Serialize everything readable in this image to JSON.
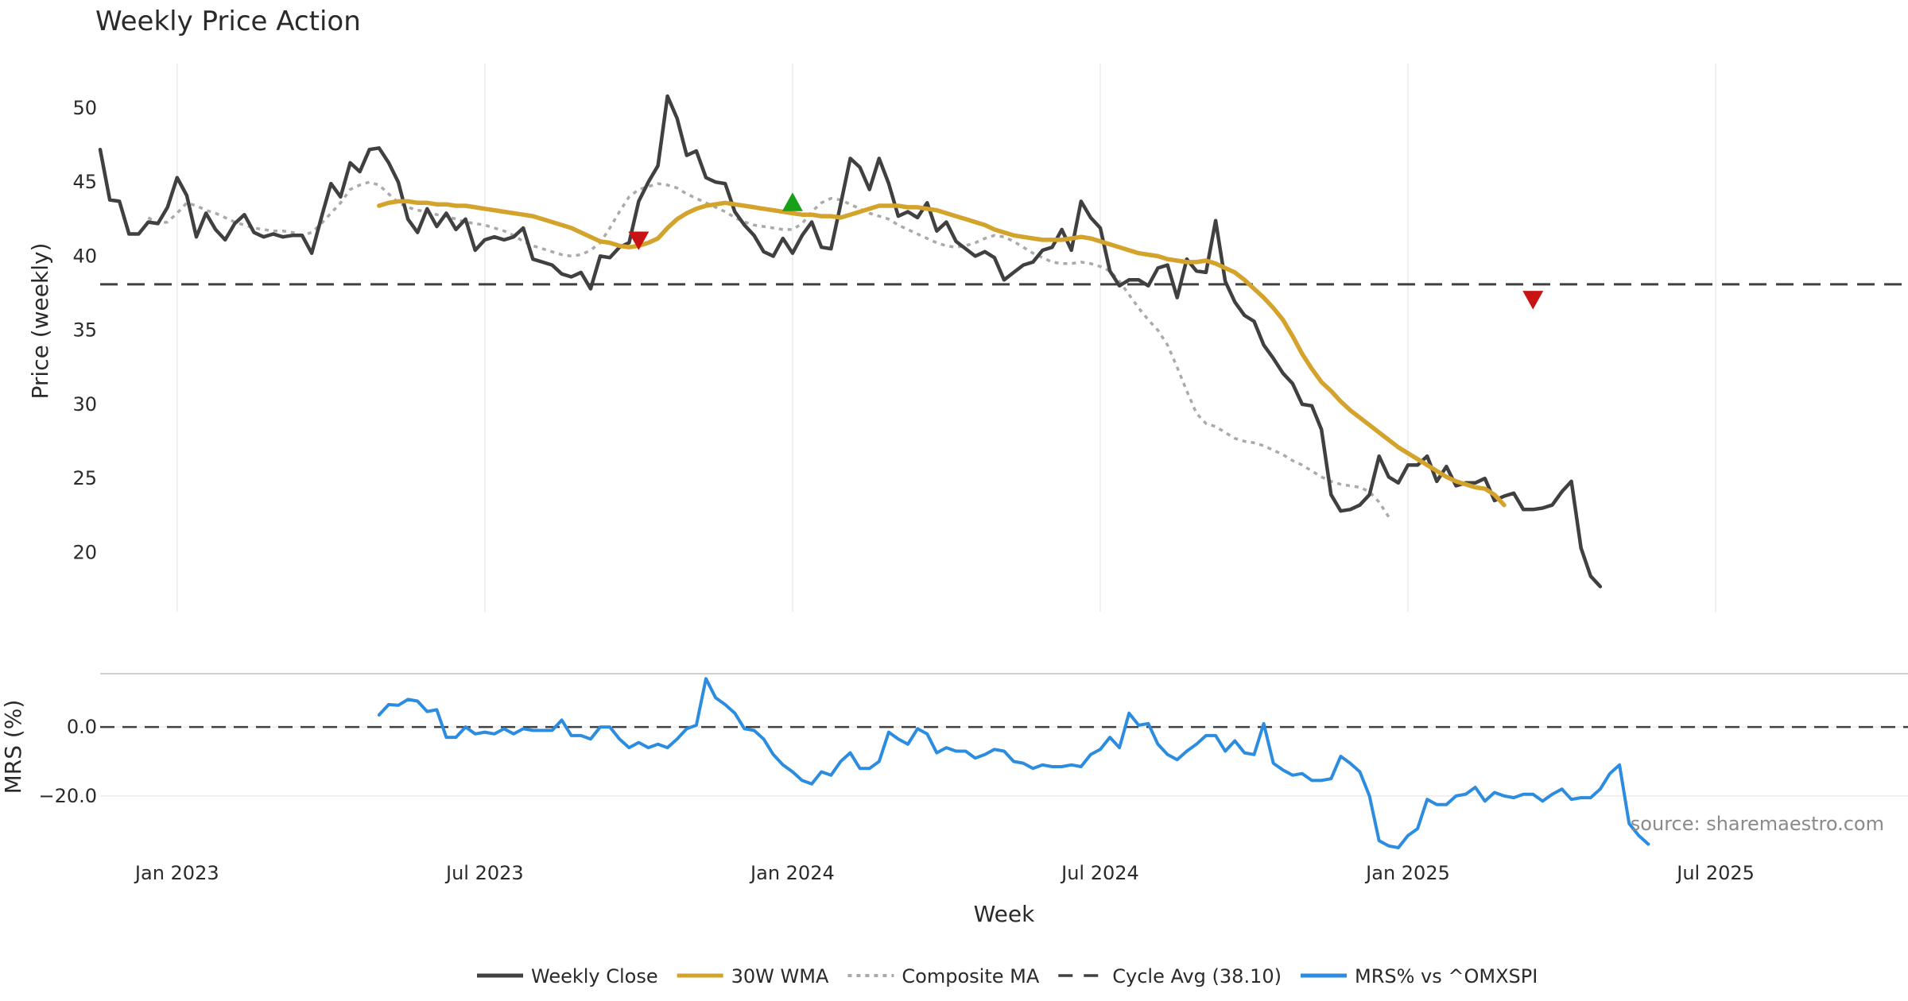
{
  "chart_data": [
    {
      "type": "line",
      "panel": "price",
      "title": "Weekly Price Action",
      "ylabel": "Price (weekly)",
      "xlabel": "Week",
      "xlim": [
        0,
        188
      ],
      "ylim": [
        16,
        53
      ],
      "yticks": [
        20,
        25,
        30,
        35,
        40,
        45,
        50
      ],
      "xticks": [
        {
          "label": "Jan 2023",
          "week": 8
        },
        {
          "label": "Jul 2023",
          "week": 40
        },
        {
          "label": "Jan 2024",
          "week": 72
        },
        {
          "label": "Jul 2024",
          "week": 104
        },
        {
          "label": "Jan 2025",
          "week": 136
        },
        {
          "label": "Jul 2025",
          "week": 168
        }
      ],
      "series": [
        {
          "name": "Weekly Close",
          "color": "#404040",
          "start_week": 0,
          "values": [
            47.2,
            43.8,
            43.7,
            41.5,
            41.5,
            42.3,
            42.2,
            43.3,
            45.3,
            44.1,
            41.3,
            42.9,
            41.8,
            41.1,
            42.2,
            42.8,
            41.6,
            41.3,
            41.5,
            41.3,
            41.4,
            41.4,
            40.2,
            42.6,
            44.9,
            44.0,
            46.3,
            45.7,
            47.2,
            47.3,
            46.3,
            45.0,
            42.5,
            41.6,
            43.2,
            42.0,
            42.9,
            41.8,
            42.5,
            40.4,
            41.1,
            41.3,
            41.1,
            41.3,
            41.9,
            39.8,
            39.6,
            39.4,
            38.8,
            38.6,
            38.9,
            37.8,
            40.0,
            39.9,
            40.6,
            40.9,
            43.7,
            45.0,
            46.1,
            50.8,
            49.3,
            46.8,
            47.1,
            45.3,
            45.0,
            44.9,
            43.0,
            42.1,
            41.4,
            40.3,
            40.0,
            41.2,
            40.2,
            41.4,
            42.3,
            40.6,
            40.5,
            43.5,
            46.6,
            46.0,
            44.5,
            46.6,
            44.9,
            42.7,
            43.0,
            42.6,
            43.6,
            41.7,
            42.3,
            41.0,
            40.5,
            40.0,
            40.3,
            39.9,
            38.4,
            38.9,
            39.4,
            39.6,
            40.4,
            40.6,
            41.8,
            40.4,
            43.7,
            42.6,
            41.9,
            39.0,
            38.0,
            38.4,
            38.4,
            38.0,
            39.2,
            39.4,
            37.2,
            39.8,
            39.0,
            38.9,
            42.4,
            38.3,
            36.9,
            36.0,
            35.6,
            34.0,
            33.1,
            32.1,
            31.4,
            30.0,
            29.9,
            28.3,
            23.9,
            22.8,
            22.9,
            23.2,
            23.9,
            26.5,
            25.1,
            24.7,
            25.9,
            25.9,
            26.5,
            24.8,
            25.8,
            24.5,
            24.7,
            24.7,
            25.0,
            23.5,
            23.8,
            24.0,
            22.9,
            22.9,
            23.0,
            23.2,
            24.1,
            24.8,
            20.3,
            18.4,
            17.7
          ]
        },
        {
          "name": "30W WMA",
          "color": "#d4a32c",
          "start_week": 29,
          "values": [
            43.4,
            43.6,
            43.7,
            43.7,
            43.6,
            43.6,
            43.5,
            43.5,
            43.4,
            43.4,
            43.3,
            43.2,
            43.1,
            43.0,
            42.9,
            42.8,
            42.7,
            42.5,
            42.3,
            42.1,
            41.9,
            41.6,
            41.3,
            41.0,
            40.9,
            40.7,
            40.6,
            40.7,
            40.9,
            41.2,
            41.9,
            42.5,
            42.9,
            43.2,
            43.4,
            43.5,
            43.6,
            43.5,
            43.4,
            43.3,
            43.2,
            43.1,
            43.0,
            42.9,
            42.8,
            42.8,
            42.7,
            42.7,
            42.6,
            42.8,
            43.0,
            43.2,
            43.4,
            43.4,
            43.4,
            43.3,
            43.3,
            43.2,
            43.1,
            42.9,
            42.7,
            42.5,
            42.3,
            42.1,
            41.8,
            41.6,
            41.4,
            41.3,
            41.2,
            41.1,
            41.1,
            41.1,
            41.2,
            41.3,
            41.2,
            41.0,
            40.8,
            40.6,
            40.4,
            40.2,
            40.1,
            40.0,
            39.8,
            39.7,
            39.6,
            39.6,
            39.7,
            39.5,
            39.2,
            38.9,
            38.4,
            37.8,
            37.2,
            36.5,
            35.7,
            34.6,
            33.4,
            32.4,
            31.5,
            30.9,
            30.2,
            29.6,
            29.1,
            28.6,
            28.1,
            27.6,
            27.1,
            26.7,
            26.3,
            25.9,
            25.5,
            25.1,
            24.8,
            24.6,
            24.4,
            24.3,
            23.9,
            23.2
          ]
        },
        {
          "name": "Composite MA",
          "color": "#aaaaaa",
          "start_week": 5,
          "values": [
            42.6,
            42.2,
            42.3,
            42.9,
            43.6,
            43.4,
            43.1,
            42.9,
            42.6,
            42.3,
            42.1,
            41.9,
            41.8,
            41.7,
            41.7,
            41.6,
            41.4,
            41.6,
            42.2,
            42.9,
            43.6,
            44.5,
            44.8,
            45.0,
            44.8,
            44.2,
            43.6,
            43.3,
            43.1,
            43.0,
            42.8,
            42.7,
            42.5,
            42.3,
            42.2,
            42.1,
            41.9,
            41.7,
            41.4,
            41.0,
            40.7,
            40.5,
            40.3,
            40.1,
            40.0,
            40.1,
            40.4,
            40.9,
            41.9,
            43.0,
            44.0,
            44.5,
            44.7,
            44.9,
            44.8,
            44.6,
            44.2,
            43.9,
            43.6,
            43.3,
            43.0,
            42.6,
            42.3,
            42.1,
            42.0,
            41.9,
            41.8,
            41.8,
            42.2,
            43.0,
            43.6,
            43.9,
            43.8,
            43.5,
            43.2,
            42.9,
            42.7,
            42.5,
            42.1,
            41.8,
            41.5,
            41.2,
            40.9,
            40.7,
            40.6,
            40.7,
            40.9,
            41.2,
            41.4,
            41.3,
            41.0,
            40.6,
            40.2,
            39.9,
            39.6,
            39.5,
            39.5,
            39.6,
            39.5,
            39.3,
            39.0,
            38.3,
            37.4,
            36.5,
            35.7,
            35.0,
            34.0,
            32.5,
            30.9,
            29.4,
            28.7,
            28.5,
            28.1,
            27.7,
            27.5,
            27.4,
            27.2,
            26.9,
            26.6,
            26.2,
            25.9,
            25.5,
            25.1,
            24.8,
            24.6,
            24.5,
            24.4,
            24.1,
            23.4,
            22.4
          ]
        }
      ],
      "reference_lines": [
        {
          "name": "Cycle Avg (38.10)",
          "value": 38.1,
          "color": "#404040",
          "style": "dashed"
        }
      ],
      "markers": [
        {
          "type": "buy",
          "shape": "triangle-up",
          "color": "#18a018",
          "week": 72,
          "value": 43.6
        },
        {
          "type": "sell",
          "shape": "triangle-down",
          "color": "#c81414",
          "week": 56,
          "value": 41.1
        },
        {
          "type": "sell",
          "shape": "triangle-down",
          "color": "#c81414",
          "week": 149,
          "value": 37.1
        }
      ]
    },
    {
      "type": "line",
      "panel": "mrs",
      "ylabel": "MRS (%)",
      "xlim": [
        0,
        188
      ],
      "ylim": [
        -38,
        15
      ],
      "yticks": [
        {
          "value": 0,
          "label": "0.0"
        },
        {
          "value": -20,
          "label": "−20.0"
        }
      ],
      "series": [
        {
          "name": "MRS% vs ^OMXSPI",
          "color": "#2b8ce0",
          "start_week": 29,
          "values": [
            3.5,
            6.5,
            6.3,
            8.0,
            7.5,
            4.5,
            5.0,
            -3.0,
            -3.0,
            0.0,
            -2.0,
            -1.5,
            -2.0,
            -0.5,
            -2.0,
            -0.5,
            -1.0,
            -1.0,
            -1.0,
            2.0,
            -2.5,
            -2.5,
            -3.5,
            0.0,
            0.0,
            -3.5,
            -6.0,
            -4.5,
            -6.0,
            -5.0,
            -6.0,
            -3.5,
            -0.5,
            0.5,
            14.0,
            8.5,
            6.5,
            4.0,
            -0.5,
            -1.0,
            -3.5,
            -8.0,
            -11.0,
            -13.0,
            -15.5,
            -16.5,
            -13.0,
            -14.0,
            -10.0,
            -7.5,
            -12.0,
            -12.0,
            -10.0,
            -1.5,
            -3.5,
            -5.0,
            -0.5,
            -2.0,
            -7.5,
            -6.0,
            -7.0,
            -7.0,
            -9.0,
            -8.0,
            -6.5,
            -7.0,
            -10.0,
            -10.5,
            -12.0,
            -11.0,
            -11.5,
            -11.5,
            -11.0,
            -11.5,
            -8.0,
            -6.5,
            -3.0,
            -6.0,
            4.0,
            0.5,
            1.0,
            -5.0,
            -8.0,
            -9.5,
            -7.0,
            -5.0,
            -2.5,
            -2.5,
            -7.0,
            -4.0,
            -7.5,
            -8.0,
            1.0,
            -10.5,
            -12.5,
            -14.0,
            -13.5,
            -15.5,
            -15.5,
            -15.0,
            -8.5,
            -10.5,
            -13.0,
            -20.0,
            -33.0,
            -34.5,
            -35.0,
            -31.5,
            -29.5,
            -21.0,
            -22.5,
            -22.5,
            -20.0,
            -19.5,
            -17.5,
            -21.5,
            -19.0,
            -20.0,
            -20.5,
            -19.5,
            -19.5,
            -21.5,
            -19.5,
            -18.0,
            -21.0,
            -20.5,
            -20.5,
            -18.0,
            -13.5,
            -11.0,
            -28.0,
            -31.5,
            -34.0
          ]
        }
      ],
      "reference_lines": [
        {
          "value": 0,
          "color": "#404040",
          "style": "dashed"
        }
      ],
      "annotation": "source: sharemaestro.com"
    }
  ],
  "legend": [
    {
      "label": "Weekly Close",
      "color": "#404040",
      "style": "solid"
    },
    {
      "label": "30W WMA",
      "color": "#d4a32c",
      "style": "solid"
    },
    {
      "label": "Composite MA",
      "color": "#aaaaaa",
      "style": "dotted"
    },
    {
      "label": "Cycle Avg (38.10)",
      "color": "#404040",
      "style": "dashed"
    },
    {
      "label": "MRS% vs ^OMXSPI",
      "color": "#2b8ce0",
      "style": "solid"
    }
  ]
}
